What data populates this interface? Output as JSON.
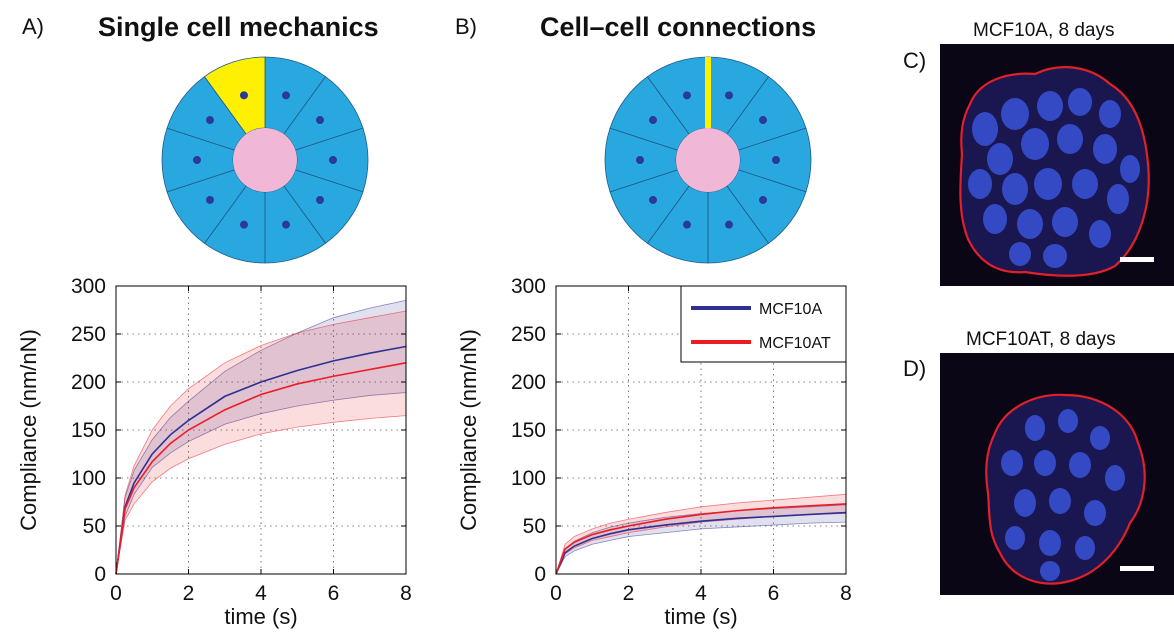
{
  "panels": {
    "a": {
      "letter": "A)",
      "title": "Single cell mechanics",
      "highlight": "cell"
    },
    "b": {
      "letter": "B)",
      "title": "Cell–cell connections",
      "highlight": "junction"
    },
    "c": {
      "letter": "C)",
      "title": "MCF10A, 8 days"
    },
    "d": {
      "letter": "D)",
      "title": "MCF10AT, 8 days"
    }
  },
  "colors": {
    "cell": "#29a8e0",
    "lumen": "#f0b8d6",
    "nucleus": "#2b3a9a",
    "highlight": "#ffef00",
    "mcf10a": "#2e3192",
    "mcf10at": "#ed1c24"
  },
  "chart_data": [
    {
      "type": "line",
      "panel": "A",
      "xlabel": "time (s)",
      "ylabel": "Compliance (nm/nN)",
      "xlim": [
        0,
        8
      ],
      "ylim": [
        0,
        300
      ],
      "xticks": [
        "0",
        "2",
        "4",
        "6",
        "8"
      ],
      "yticks": [
        "0",
        "50",
        "100",
        "150",
        "200",
        "250",
        "300"
      ],
      "grid": true,
      "legend": null,
      "series": [
        {
          "name": "MCF10A",
          "color": "#2e3192",
          "x": [
            0,
            0.25,
            0.5,
            1,
            1.5,
            2,
            3,
            4,
            5,
            6,
            7,
            8
          ],
          "y": [
            0,
            70,
            95,
            125,
            145,
            160,
            185,
            200,
            212,
            222,
            230,
            237
          ],
          "upper": [
            0,
            80,
            108,
            140,
            163,
            180,
            211,
            233,
            251,
            267,
            277,
            285
          ],
          "lower": [
            0,
            60,
            83,
            111,
            126,
            138,
            156,
            167,
            175,
            181,
            186,
            189
          ]
        },
        {
          "name": "MCF10AT",
          "color": "#ed1c24",
          "x": [
            0,
            0.25,
            0.5,
            1,
            1.5,
            2,
            3,
            4,
            5,
            6,
            7,
            8
          ],
          "y": [
            0,
            68,
            90,
            117,
            136,
            150,
            171,
            187,
            198,
            206,
            213,
            220
          ],
          "upper": [
            0,
            82,
            113,
            150,
            175,
            193,
            220,
            238,
            251,
            260,
            267,
            274
          ],
          "lower": [
            0,
            56,
            73,
            96,
            110,
            120,
            135,
            146,
            153,
            158,
            162,
            165
          ]
        }
      ]
    },
    {
      "type": "line",
      "panel": "B",
      "xlabel": "time (s)",
      "ylabel": "Compliance (nm/nN)",
      "xlim": [
        0,
        8
      ],
      "ylim": [
        0,
        300
      ],
      "xticks": [
        "0",
        "2",
        "4",
        "6",
        "8"
      ],
      "yticks": [
        "0",
        "50",
        "100",
        "150",
        "200",
        "250",
        "300"
      ],
      "grid": true,
      "legend": "top-right",
      "series": [
        {
          "name": "MCF10A",
          "color": "#2e3192",
          "x": [
            0,
            0.25,
            0.5,
            1,
            1.5,
            2,
            3,
            4,
            5,
            6,
            7,
            8
          ],
          "y": [
            0,
            22,
            29,
            37,
            42,
            46,
            51,
            55,
            58,
            60,
            62,
            64
          ],
          "upper": [
            0,
            26,
            34,
            43,
            49,
            53,
            59,
            63,
            66,
            68,
            70,
            72
          ],
          "lower": [
            0,
            18,
            24,
            31,
            35,
            39,
            43,
            47,
            49,
            51,
            53,
            54
          ]
        },
        {
          "name": "MCF10AT",
          "color": "#ed1c24",
          "x": [
            0,
            0.25,
            0.5,
            1,
            1.5,
            2,
            3,
            4,
            5,
            6,
            7,
            8
          ],
          "y": [
            0,
            26,
            33,
            41,
            46,
            50,
            57,
            62,
            66,
            69,
            71,
            73
          ],
          "upper": [
            0,
            31,
            39,
            47,
            53,
            57,
            64,
            70,
            74,
            77,
            80,
            83
          ],
          "lower": [
            0,
            21,
            27,
            35,
            39,
            43,
            49,
            54,
            57,
            60,
            62,
            63
          ]
        }
      ]
    }
  ],
  "scale_bars": {
    "c": true,
    "d": true
  }
}
